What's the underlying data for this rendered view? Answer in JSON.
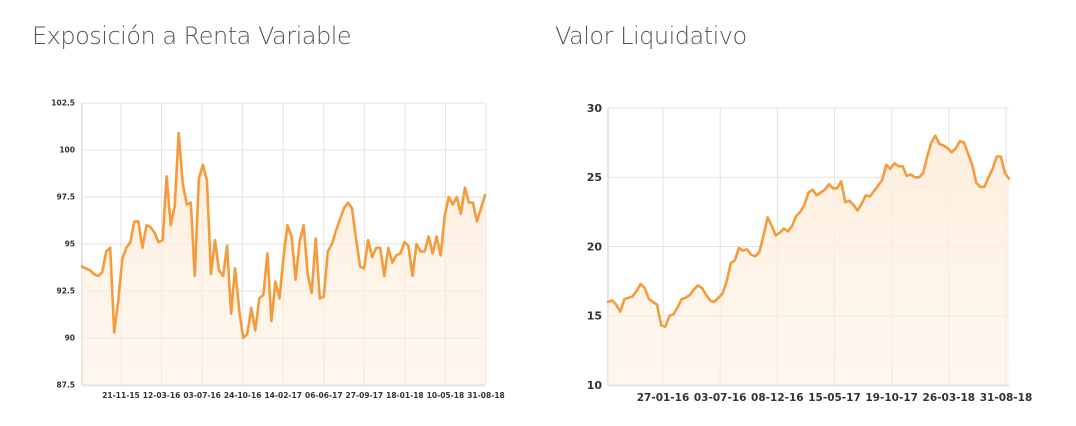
{
  "charts": [
    {
      "title": "Exposición a Renta Variable",
      "chart_data": {
        "type": "area",
        "title": "Exposición a Renta Variable",
        "xlabel": "",
        "ylabel": "",
        "ylim": [
          87.5,
          102.5
        ],
        "y_ticks": [
          "102.5",
          "100",
          "97.5",
          "95",
          "92.5",
          "90",
          "87.5"
        ],
        "x_ticks": [
          "21-11-15",
          "12-03-16",
          "03-07-16",
          "24-10-16",
          "14-02-17",
          "06-06-17",
          "27-09-17",
          "18-01-18",
          "10-05-18",
          "31-08-18"
        ],
        "grid": true,
        "legend": "none",
        "values": [
          93.8,
          93.7,
          93.6,
          93.4,
          93.3,
          93.5,
          94.6,
          94.8,
          90.3,
          92.0,
          94.2,
          94.8,
          95.1,
          96.2,
          96.2,
          94.8,
          96.0,
          95.9,
          95.6,
          95.1,
          95.2,
          98.6,
          96.0,
          97.0,
          100.9,
          98.2,
          97.1,
          97.2,
          93.3,
          98.5,
          99.2,
          98.4,
          93.4,
          95.2,
          93.6,
          93.3,
          94.9,
          91.3,
          93.7,
          91.5,
          90.0,
          90.2,
          91.6,
          90.4,
          92.1,
          92.3,
          94.5,
          90.9,
          93.0,
          92.1,
          94.3,
          96.0,
          95.4,
          93.1,
          95.1,
          96.0,
          93.4,
          92.4,
          95.3,
          92.1,
          92.2,
          94.6,
          95.0,
          95.7,
          96.3,
          96.9,
          97.2,
          96.9,
          95.3,
          93.8,
          93.7,
          95.2,
          94.3,
          94.8,
          94.8,
          93.3,
          94.8,
          94.0,
          94.4,
          94.5,
          95.1,
          94.9,
          93.3,
          95.0,
          94.6,
          94.6,
          95.4,
          94.5,
          95.4,
          94.4,
          96.5,
          97.5,
          97.1,
          97.5,
          96.6,
          98.0,
          97.2,
          97.2,
          96.2,
          96.9,
          97.6
        ]
      }
    },
    {
      "title": "Valor Liquidativo",
      "chart_data": {
        "type": "area",
        "title": "Valor Liquidativo",
        "xlabel": "",
        "ylabel": "",
        "ylim": [
          10,
          30
        ],
        "y_ticks": [
          "30",
          "25",
          "20",
          "15",
          "10"
        ],
        "x_ticks": [
          "27-01-16",
          "03-07-16",
          "08-12-16",
          "15-05-17",
          "19-10-17",
          "26-03-18",
          "31-08-18"
        ],
        "grid": true,
        "legend": "none",
        "values": [
          16.0,
          16.1,
          15.8,
          15.3,
          16.2,
          16.3,
          16.4,
          16.8,
          17.3,
          17.0,
          16.2,
          16.0,
          15.8,
          14.3,
          14.2,
          15.0,
          15.1,
          15.6,
          16.2,
          16.3,
          16.5,
          16.9,
          17.2,
          17.0,
          16.5,
          16.1,
          16.0,
          16.3,
          16.6,
          17.5,
          18.8,
          19.0,
          19.9,
          19.7,
          19.8,
          19.4,
          19.3,
          19.6,
          20.8,
          22.1,
          21.5,
          20.8,
          21.0,
          21.3,
          21.1,
          21.5,
          22.2,
          22.5,
          23.0,
          23.9,
          24.1,
          23.7,
          23.9,
          24.1,
          24.5,
          24.2,
          24.2,
          24.7,
          23.2,
          23.3,
          23.0,
          22.6,
          23.1,
          23.7,
          23.6,
          24.0,
          24.4,
          24.8,
          25.9,
          25.6,
          26.0,
          25.8,
          25.8,
          25.1,
          25.2,
          25.0,
          25.0,
          25.3,
          26.5,
          27.5,
          28.0,
          27.4,
          27.3,
          27.1,
          26.8,
          27.1,
          27.6,
          27.5,
          26.7,
          25.9,
          24.6,
          24.3,
          24.3,
          25.0,
          25.6,
          26.5,
          26.5,
          25.3,
          24.9
        ]
      }
    }
  ],
  "colors": {
    "line": "#f59b3c",
    "fill": "#fdeedd",
    "grid": "#e3e3e3",
    "tick": "#333333",
    "title": "#555555"
  }
}
